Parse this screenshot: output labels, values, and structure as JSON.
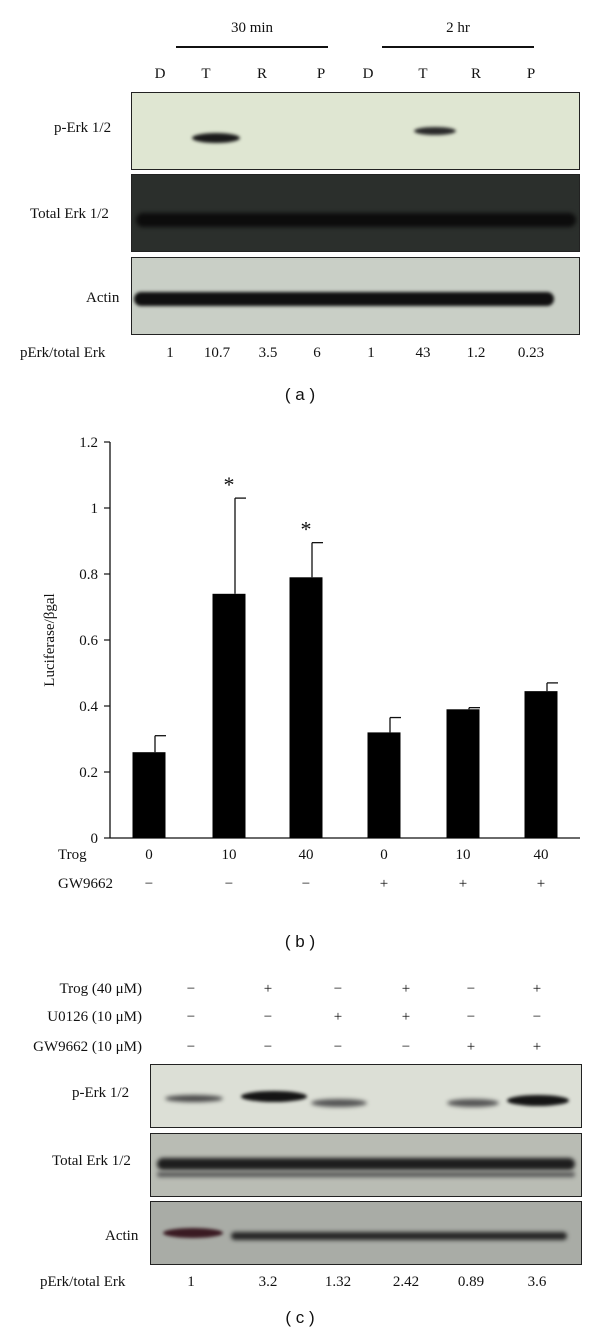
{
  "panel_a": {
    "caption": "( a )",
    "time_groups": [
      "30 min",
      "2 hr"
    ],
    "lanes": [
      "D",
      "T",
      "R",
      "P",
      "D",
      "T",
      "R",
      "P"
    ],
    "rows": [
      "p-Erk 1/2",
      "Total Erk 1/2",
      "Actin"
    ],
    "ratio_label": "pErk/total Erk",
    "ratios": [
      "1",
      "10.7",
      "3.5",
      "6",
      "1",
      "43",
      "1.2",
      "0.23"
    ]
  },
  "panel_b": {
    "caption": "( b )",
    "row_labels": [
      "Trog",
      "GW9662"
    ],
    "trog_values": [
      "0",
      "10",
      "40",
      "0",
      "10",
      "40"
    ],
    "gw_values": [
      "−",
      "−",
      "−",
      "+",
      "+",
      "+"
    ],
    "significance_marker": "*"
  },
  "panel_c": {
    "caption": "( c )",
    "conditions": [
      {
        "label": "Trog (40 μM)",
        "values": [
          "−",
          "+",
          "−",
          "+",
          "−",
          "+"
        ]
      },
      {
        "label": "U0126 (10 μM)",
        "values": [
          "−",
          "−",
          "+",
          "+",
          "−",
          "−"
        ]
      },
      {
        "label": "GW9662 (10 μM)",
        "values": [
          "−",
          "−",
          "−",
          "−",
          "+",
          "+"
        ]
      }
    ],
    "rows": [
      "p-Erk 1/2",
      "Total Erk 1/2",
      "Actin"
    ],
    "ratio_label": "pErk/total Erk",
    "ratios": [
      "1",
      "3.2",
      "1.32",
      "2.42",
      "0.89",
      "3.6"
    ]
  },
  "chart_data": {
    "type": "bar",
    "ylabel": "Luciferase/βgal",
    "ylim": [
      0,
      1.2
    ],
    "yticks": [
      "0",
      "0.2",
      "0.4",
      "0.6",
      "0.8",
      "1",
      "1.2"
    ],
    "categories": [
      "0",
      "10",
      "40",
      "0",
      "10",
      "40"
    ],
    "values": [
      0.26,
      0.74,
      0.79,
      0.32,
      0.39,
      0.445
    ],
    "errors": [
      0.05,
      0.29,
      0.105,
      0.045,
      0.005,
      0.025
    ],
    "significant": [
      false,
      true,
      true,
      false,
      false,
      false
    ],
    "bar_color": "#000000"
  }
}
